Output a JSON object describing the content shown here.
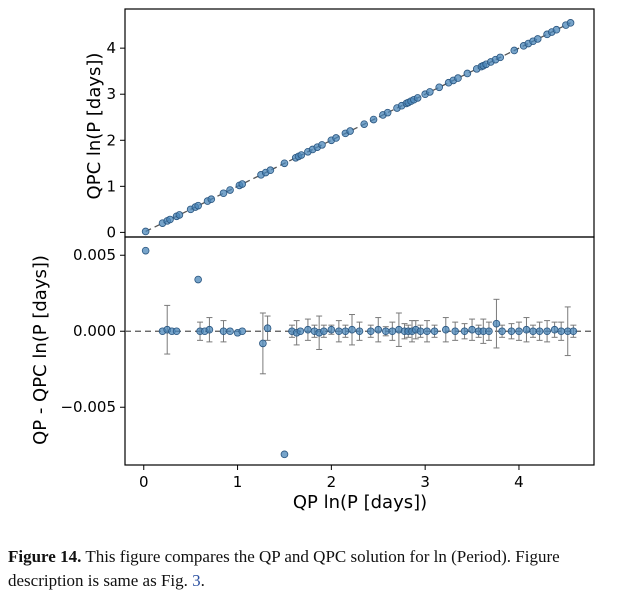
{
  "chart_data": {
    "type": "scatter",
    "x_tick_labels": [
      "0",
      "1",
      "2",
      "3",
      "4"
    ],
    "xlabel": "QP ln(P [days])",
    "xlim": [
      -0.2,
      4.8
    ],
    "grid": false,
    "panels": [
      {
        "name": "top",
        "ylabel": "QPC ln(P [days])",
        "ylim": [
          -0.1,
          4.85
        ],
        "y_ticks": [
          0,
          1,
          2,
          3,
          4
        ],
        "y_tick_labels": [
          "0",
          "1",
          "2",
          "3",
          "4"
        ],
        "reference_line": "y = x (dashed)",
        "x": [
          0.02,
          0.2,
          0.25,
          0.28,
          0.35,
          0.38,
          0.5,
          0.55,
          0.58,
          0.68,
          0.72,
          0.85,
          0.92,
          1.02,
          1.05,
          1.25,
          1.3,
          1.35,
          1.5,
          1.62,
          1.65,
          1.68,
          1.75,
          1.8,
          1.85,
          1.9,
          2.0,
          2.05,
          2.15,
          2.2,
          2.35,
          2.45,
          2.55,
          2.6,
          2.7,
          2.75,
          2.8,
          2.82,
          2.85,
          2.88,
          2.92,
          3.0,
          3.05,
          3.15,
          3.25,
          3.3,
          3.35,
          3.45,
          3.55,
          3.6,
          3.62,
          3.65,
          3.7,
          3.75,
          3.8,
          3.95,
          4.05,
          4.1,
          4.15,
          4.2,
          4.3,
          4.35,
          4.4,
          4.5,
          4.55
        ],
        "y": [
          0.02,
          0.2,
          0.25,
          0.28,
          0.35,
          0.38,
          0.5,
          0.55,
          0.58,
          0.68,
          0.72,
          0.85,
          0.92,
          1.02,
          1.05,
          1.25,
          1.3,
          1.35,
          1.5,
          1.62,
          1.65,
          1.68,
          1.75,
          1.8,
          1.85,
          1.9,
          2.0,
          2.05,
          2.15,
          2.2,
          2.35,
          2.45,
          2.55,
          2.6,
          2.7,
          2.75,
          2.8,
          2.82,
          2.85,
          2.88,
          2.92,
          3.0,
          3.05,
          3.15,
          3.25,
          3.3,
          3.35,
          3.45,
          3.55,
          3.6,
          3.62,
          3.65,
          3.7,
          3.75,
          3.8,
          3.95,
          4.05,
          4.1,
          4.15,
          4.2,
          4.3,
          4.35,
          4.4,
          4.5,
          4.55
        ]
      },
      {
        "name": "bottom",
        "ylabel": "QP - QPC  ln(P [days])",
        "ylim": [
          -0.0088,
          0.0062
        ],
        "y_ticks": [
          0.005,
          0.0,
          -0.005
        ],
        "y_tick_labels": [
          "0.005",
          "0.000",
          "−0.005"
        ],
        "reference_line": "y = 0 (dashed)",
        "x": [
          0.02,
          0.2,
          0.25,
          0.3,
          0.35,
          0.58,
          0.6,
          0.65,
          0.7,
          0.85,
          0.92,
          1.0,
          1.05,
          1.27,
          1.32,
          1.5,
          1.58,
          1.63,
          1.67,
          1.75,
          1.82,
          1.87,
          1.92,
          2.0,
          2.08,
          2.15,
          2.22,
          2.3,
          2.42,
          2.5,
          2.58,
          2.65,
          2.72,
          2.78,
          2.82,
          2.86,
          2.9,
          2.95,
          3.02,
          3.1,
          3.22,
          3.32,
          3.42,
          3.5,
          3.57,
          3.62,
          3.68,
          3.76,
          3.82,
          3.92,
          4.0,
          4.08,
          4.15,
          4.22,
          4.3,
          4.38,
          4.45,
          4.52,
          4.58
        ],
        "y": [
          0.0053,
          0.0,
          0.0001,
          0.0,
          0.0,
          0.0034,
          0.0,
          0.0,
          0.0001,
          0.0,
          0.0,
          -0.0001,
          0.0,
          -0.0008,
          0.0002,
          -0.0081,
          0.0,
          -0.0001,
          0.0,
          0.0001,
          0.0,
          -0.0001,
          0.0,
          0.0001,
          0.0,
          0.0,
          0.0001,
          0.0,
          0.0,
          0.0001,
          0.0,
          0.0,
          0.0001,
          0.0,
          0.0,
          0.0,
          0.0001,
          0.0,
          0.0,
          0.0,
          0.0001,
          0.0,
          0.0,
          0.0001,
          0.0,
          0.0,
          0.0,
          0.0005,
          0.0,
          0.0,
          0.0,
          0.0001,
          0.0,
          0.0,
          0.0,
          0.0001,
          0.0,
          0.0,
          0.0
        ],
        "yerr": [
          0,
          0,
          0.0016,
          0,
          0,
          0,
          0.0006,
          0,
          0.0008,
          0.0007,
          0,
          0,
          0,
          0.002,
          0.0008,
          0,
          0.0004,
          0.0008,
          0,
          0.0007,
          0.0004,
          0.0011,
          0.0004,
          0.0003,
          0.0007,
          0.0004,
          0.001,
          0.0006,
          0.0004,
          0.0008,
          0.0003,
          0.0006,
          0.0011,
          0.0005,
          0.0004,
          0.0007,
          0.0006,
          0.0004,
          0.0007,
          0.0004,
          0.0008,
          0.0006,
          0.0005,
          0.0007,
          0.0004,
          0.0008,
          0.0006,
          0.0016,
          0.0004,
          0.0005,
          0.0006,
          0.0008,
          0.0004,
          0.0006,
          0.0007,
          0.0005,
          0.0006,
          0.0016,
          0.0004
        ]
      }
    ]
  },
  "colors": {
    "point_fill": "#4a86b8",
    "point_edge": "#2a5680",
    "reference_line": "#555555",
    "errorbar": "#7a7a7a",
    "axis": "#000000"
  },
  "caption": {
    "label": "Figure 14.",
    "text": "This figure compares the QP and QPC solution for ln (Period). Figure description is same as Fig. ",
    "ref": "3",
    "end": "."
  }
}
